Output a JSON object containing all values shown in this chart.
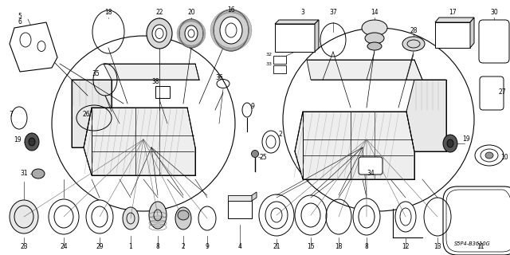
{
  "bg_color": "#ffffff",
  "part_number": "S5P4-B3610G",
  "fig_w": 6.4,
  "fig_h": 3.2,
  "dpi": 100
}
